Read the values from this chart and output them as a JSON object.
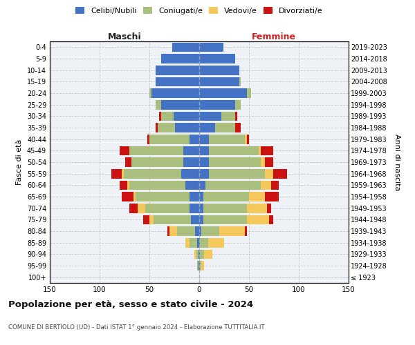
{
  "age_groups": [
    "100+",
    "95-99",
    "90-94",
    "85-89",
    "80-84",
    "75-79",
    "70-74",
    "65-69",
    "60-64",
    "55-59",
    "50-54",
    "45-49",
    "40-44",
    "35-39",
    "30-34",
    "25-29",
    "20-24",
    "15-19",
    "10-14",
    "5-9",
    "0-4"
  ],
  "birth_years": [
    "≤ 1923",
    "1924-1928",
    "1929-1933",
    "1934-1938",
    "1939-1943",
    "1944-1948",
    "1949-1953",
    "1954-1958",
    "1959-1963",
    "1964-1968",
    "1969-1973",
    "1974-1978",
    "1979-1983",
    "1984-1988",
    "1989-1993",
    "1994-1998",
    "1999-2003",
    "2004-2008",
    "2009-2013",
    "2014-2018",
    "2019-2023"
  ],
  "colors": {
    "celibi": "#4472C4",
    "coniugati": "#AABF7E",
    "vedovi": "#F5C85C",
    "divorziati": "#CC1111"
  },
  "males": {
    "celibi": [
      0,
      1,
      1,
      2,
      4,
      8,
      10,
      10,
      14,
      18,
      16,
      16,
      10,
      24,
      26,
      38,
      48,
      44,
      44,
      38,
      27
    ],
    "coniugati": [
      0,
      1,
      2,
      8,
      18,
      38,
      44,
      54,
      56,
      58,
      52,
      54,
      40,
      18,
      12,
      6,
      2,
      0,
      0,
      0,
      0
    ],
    "vedovi": [
      0,
      0,
      2,
      4,
      8,
      4,
      8,
      2,
      2,
      2,
      0,
      0,
      0,
      0,
      0,
      0,
      0,
      0,
      0,
      0,
      0
    ],
    "divorziati": [
      0,
      0,
      0,
      0,
      2,
      6,
      8,
      12,
      8,
      10,
      6,
      10,
      2,
      2,
      2,
      0,
      0,
      0,
      0,
      0,
      0
    ]
  },
  "females": {
    "nubili": [
      0,
      1,
      1,
      1,
      2,
      4,
      4,
      4,
      6,
      10,
      10,
      10,
      10,
      16,
      22,
      36,
      48,
      40,
      40,
      36,
      24
    ],
    "coniugate": [
      0,
      1,
      4,
      8,
      18,
      44,
      44,
      46,
      56,
      56,
      52,
      50,
      36,
      20,
      14,
      6,
      4,
      2,
      0,
      0,
      0
    ],
    "vedove": [
      0,
      3,
      8,
      16,
      26,
      22,
      20,
      16,
      10,
      8,
      4,
      2,
      2,
      0,
      0,
      0,
      0,
      0,
      0,
      0,
      0
    ],
    "divorziate": [
      0,
      0,
      0,
      0,
      2,
      4,
      4,
      14,
      8,
      14,
      8,
      12,
      2,
      6,
      2,
      0,
      0,
      0,
      0,
      0,
      0
    ]
  },
  "xlim": 150,
  "title": "Popolazione per età, sesso e stato civile - 2024",
  "subtitle": "COMUNE DI BERTIOLO (UD) - Dati ISTAT 1° gennaio 2024 - Elaborazione TUTTITALIA.IT",
  "xlabel_left": "Maschi",
  "xlabel_right": "Femmine",
  "ylabel_left": "Fasce di età",
  "ylabel_right": "Anni di nascita",
  "legend_labels": [
    "Celibi/Nubili",
    "Coniugati/e",
    "Vedovi/e",
    "Divorziati/e"
  ],
  "background_color": "#FFFFFF",
  "plot_bg_color": "#EEF2F7",
  "grid_color": "#BBBBBB"
}
